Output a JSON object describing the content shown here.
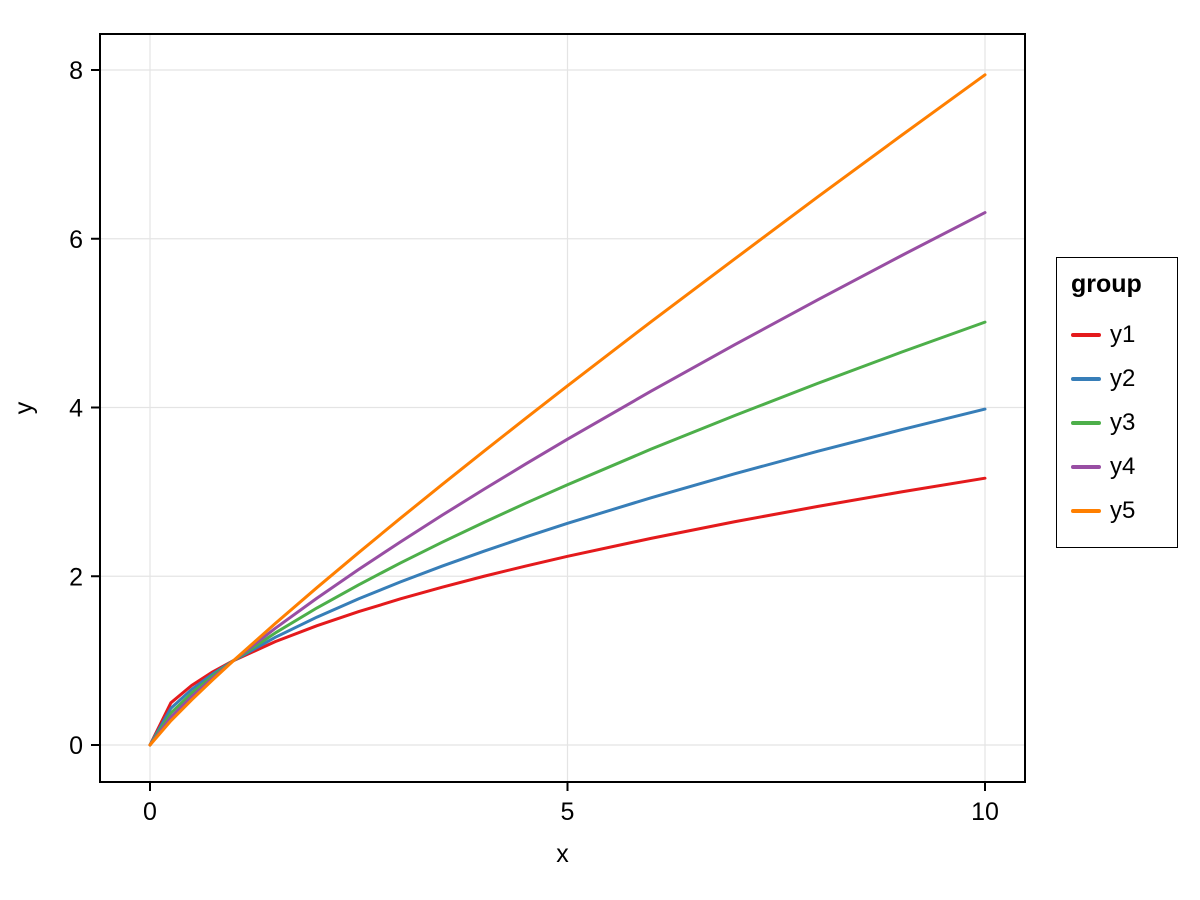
{
  "figure": {
    "background": "#ffffff",
    "frame_color": "#000000",
    "grid_color": "#e4e4e4"
  },
  "chart_data": {
    "type": "line",
    "title": "",
    "xlabel": "x",
    "ylabel": "y",
    "xlim": [
      0,
      10
    ],
    "ylim": [
      0,
      8
    ],
    "xticks": [
      0,
      5,
      10
    ],
    "yticks": [
      0,
      2,
      4,
      6,
      8
    ],
    "grid": true,
    "legend": {
      "title": "group",
      "position": "right",
      "framed": true
    },
    "x": [
      0,
      0.25,
      0.5,
      0.75,
      1,
      1.5,
      2,
      2.5,
      3,
      3.5,
      4,
      4.5,
      5,
      6,
      7,
      8,
      9,
      10
    ],
    "series": [
      {
        "name": "y1",
        "color": "#e41a1c",
        "values": [
          0,
          0.5,
          0.707,
          0.866,
          1,
          1.225,
          1.414,
          1.581,
          1.732,
          1.871,
          2,
          2.121,
          2.236,
          2.449,
          2.646,
          2.828,
          3,
          3.162
        ]
      },
      {
        "name": "y2",
        "color": "#377eb8",
        "values": [
          0,
          0.435,
          0.66,
          0.841,
          1,
          1.276,
          1.516,
          1.733,
          1.933,
          2.121,
          2.297,
          2.466,
          2.627,
          2.93,
          3.214,
          3.482,
          3.737,
          3.981
        ]
      },
      {
        "name": "y3",
        "color": "#4daf4a",
        "values": [
          0,
          0.379,
          0.616,
          0.818,
          1,
          1.328,
          1.625,
          1.899,
          2.158,
          2.404,
          2.639,
          2.866,
          3.085,
          3.506,
          3.904,
          4.287,
          4.656,
          5.012
        ]
      },
      {
        "name": "y4",
        "color": "#984ea3",
        "values": [
          0,
          0.33,
          0.574,
          0.794,
          1,
          1.383,
          1.741,
          2.081,
          2.408,
          2.724,
          3.031,
          3.331,
          3.624,
          4.193,
          4.743,
          5.278,
          5.8,
          6.31
        ]
      },
      {
        "name": "y5",
        "color": "#ff7f00",
        "values": [
          0,
          0.287,
          0.536,
          0.772,
          1,
          1.44,
          1.866,
          2.281,
          2.688,
          3.088,
          3.482,
          3.872,
          4.257,
          5.016,
          5.759,
          6.498,
          7.225,
          7.943
        ]
      }
    ]
  }
}
